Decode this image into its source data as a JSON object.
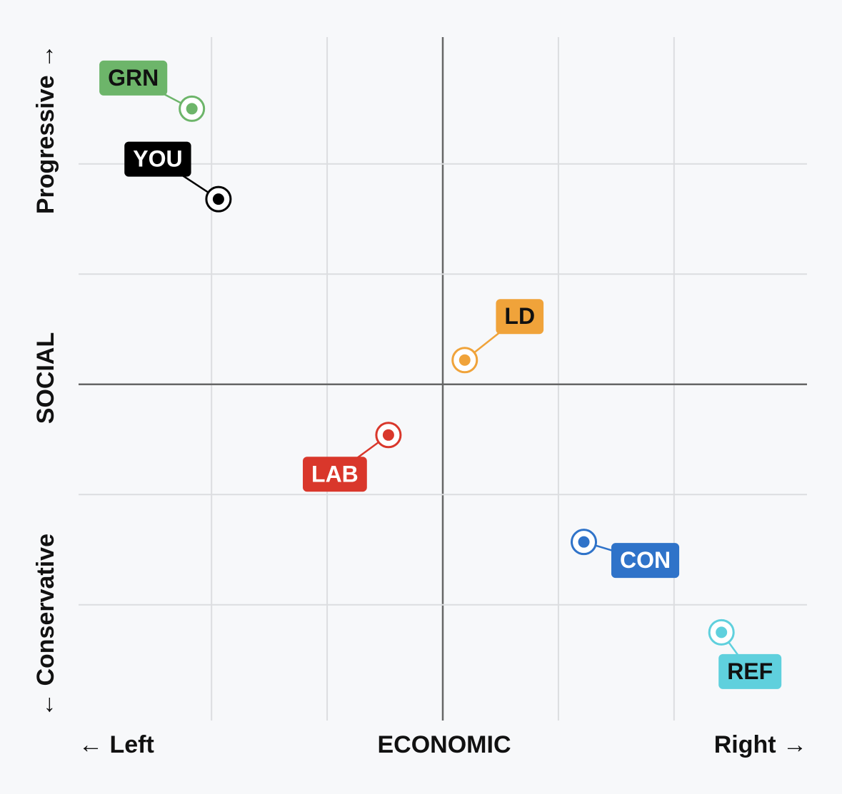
{
  "chart_data": {
    "type": "scatter",
    "x_label_left": "← Left",
    "x_label": "ECONOMIC",
    "x_label_right": "Right →",
    "y_label_top": "Progressive →",
    "y_label": "SOCIAL",
    "y_label_bottom": "← Conservative",
    "xlim": [
      -3.15,
      3.15
    ],
    "ylim": [
      -3.05,
      3.15
    ],
    "xticks": [
      -2,
      -1,
      0,
      1,
      2
    ],
    "yticks": [
      -2,
      -1,
      0,
      1,
      2
    ],
    "grid": true,
    "series": [
      {
        "name": "GRN",
        "color": "#6db56a",
        "x": [
          -2.17
        ],
        "values": [
          2.5
        ]
      },
      {
        "name": "YOU",
        "color": "#000000",
        "x": [
          -1.94
        ],
        "values": [
          1.68
        ]
      },
      {
        "name": "LD",
        "color": "#f0a33a",
        "x": [
          0.19
        ],
        "values": [
          0.22
        ]
      },
      {
        "name": "LAB",
        "color": "#d9372b",
        "x": [
          -0.47
        ],
        "values": [
          -0.46
        ]
      },
      {
        "name": "CON",
        "color": "#2f73c9",
        "x": [
          1.22
        ],
        "values": [
          -1.43
        ]
      },
      {
        "name": "REF",
        "color": "#5fd0dd",
        "x": [
          2.41
        ],
        "values": [
          -2.25
        ]
      }
    ]
  }
}
